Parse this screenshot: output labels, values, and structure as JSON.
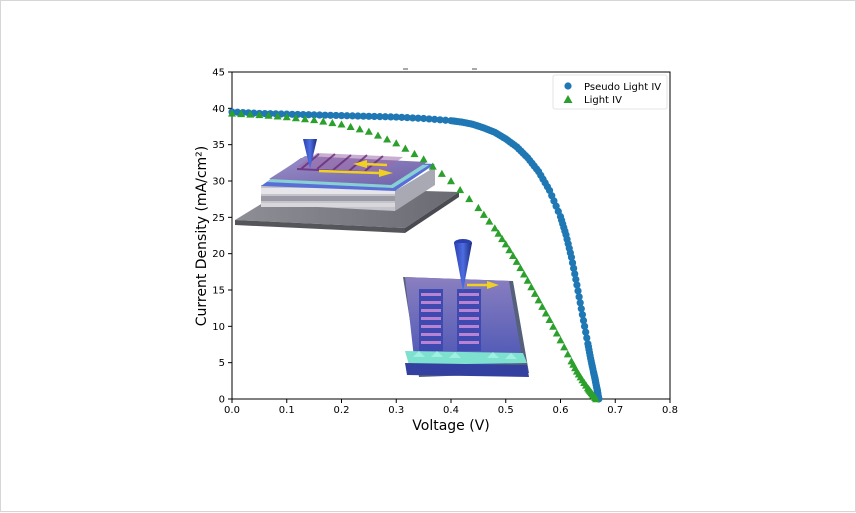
{
  "chart_data": {
    "type": "scatter",
    "title": "",
    "xlabel": "Voltage (V)",
    "ylabel": "Current Density (mA/cm²)",
    "xlim": [
      0.0,
      0.8
    ],
    "ylim": [
      0,
      45
    ],
    "xticks": [
      "0.0",
      "0.1",
      "0.2",
      "0.3",
      "0.4",
      "0.5",
      "0.6",
      "0.7",
      "0.8"
    ],
    "yticks": [
      "0",
      "5",
      "10",
      "15",
      "20",
      "25",
      "30",
      "35",
      "40",
      "45"
    ],
    "grid": false,
    "legend_position": "top-right",
    "series": [
      {
        "name": "Pseudo Light IV",
        "marker": "circle",
        "color": "#1f77b4",
        "x": [
          0.0,
          0.05,
          0.1,
          0.15,
          0.2,
          0.25,
          0.3,
          0.35,
          0.4,
          0.42,
          0.44,
          0.46,
          0.48,
          0.5,
          0.52,
          0.54,
          0.56,
          0.58,
          0.6,
          0.61,
          0.62,
          0.63,
          0.64,
          0.65,
          0.655,
          0.66,
          0.663,
          0.665,
          0.667,
          0.668,
          0.669,
          0.67
        ],
        "y": [
          39.5,
          39.3,
          39.2,
          39.1,
          39.0,
          38.9,
          38.8,
          38.6,
          38.3,
          38.1,
          37.8,
          37.3,
          36.7,
          35.8,
          34.7,
          33.2,
          31.3,
          28.7,
          25.1,
          22.6,
          19.5,
          15.7,
          11.6,
          7.6,
          5.6,
          3.8,
          2.8,
          2.0,
          1.3,
          0.8,
          0.3,
          0.0
        ]
      },
      {
        "name": "Light IV",
        "marker": "triangle",
        "color": "#2ca02c",
        "x": [
          0.0,
          0.05,
          0.1,
          0.15,
          0.2,
          0.25,
          0.3,
          0.35,
          0.4,
          0.45,
          0.48,
          0.5,
          0.52,
          0.54,
          0.56,
          0.58,
          0.6,
          0.62,
          0.63,
          0.64,
          0.65,
          0.655,
          0.66,
          0.665
        ],
        "y": [
          39.3,
          39.1,
          38.8,
          38.4,
          37.8,
          36.8,
          35.2,
          33.0,
          30.0,
          26.3,
          23.5,
          21.3,
          18.9,
          16.3,
          13.6,
          10.9,
          8.1,
          5.2,
          3.8,
          2.6,
          1.5,
          1.0,
          0.5,
          0.0
        ]
      }
    ]
  },
  "insets": [
    {
      "kind": "device-illustration",
      "description_icon": "probe-tip-on-grid-device"
    },
    {
      "kind": "device-illustration",
      "description_icon": "probe-tip-on-finger-cells"
    }
  ]
}
